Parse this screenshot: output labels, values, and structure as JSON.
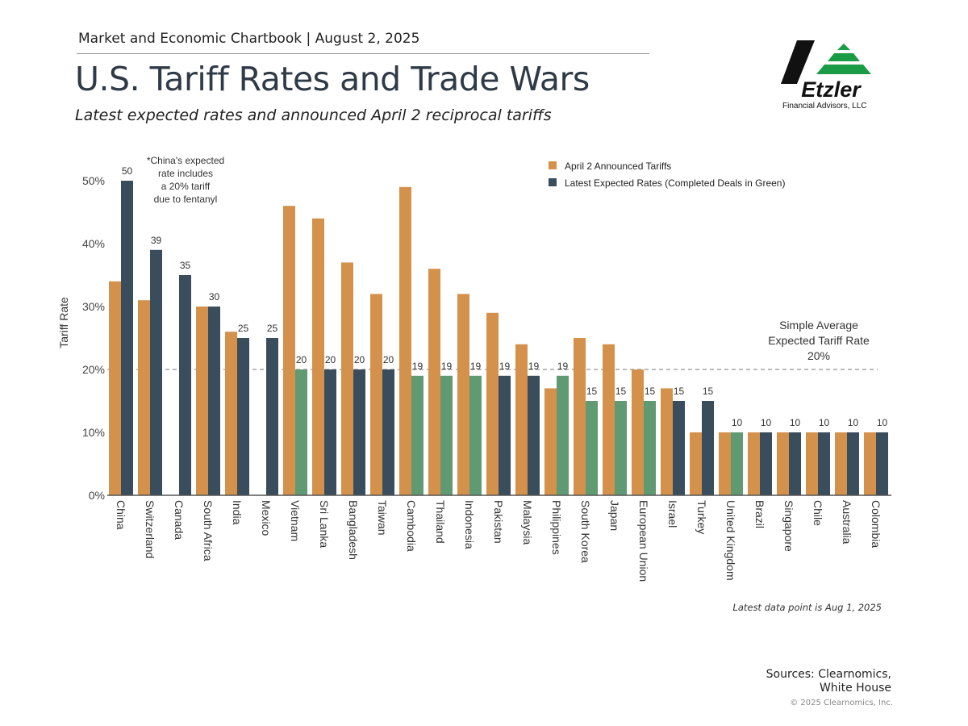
{
  "header": {
    "chartbook": "Market and Economic Chartbook | August 2, 2025",
    "title": "U.S. Tariff Rates and Trade Wars",
    "subtitle": "Latest expected rates and announced April 2 reciprocal tariffs"
  },
  "logo": {
    "name": "Etzler",
    "subtitle": "Financial Advisors, LLC"
  },
  "footer": {
    "sources_line1": "Sources: Clearnomics,",
    "sources_line2": "White House",
    "copyright": "© 2025 Clearnomics, Inc.",
    "latest_data": "Latest data point is Aug 1, 2025"
  },
  "colors": {
    "announced": "#d4914c",
    "expected": "#3a4d5c",
    "completed": "#5f9a72",
    "axis": "#555555"
  },
  "chart_data": {
    "type": "bar",
    "ylabel": "Tariff Rate",
    "ylim": [
      0,
      50
    ],
    "yticks": [
      0,
      10,
      20,
      30,
      40,
      50
    ],
    "ytick_labels": [
      "0%",
      "10%",
      "20%",
      "30%",
      "40%",
      "50%"
    ],
    "legend": {
      "placement": "top-right",
      "announced": "April 2 Announced Tariffs",
      "expected": "Latest Expected Rates (Completed Deals in Green)"
    },
    "reference_line": {
      "value": 20,
      "label_lines": [
        "Simple Average",
        "Expected Tariff Rate",
        "20%"
      ]
    },
    "annotation": [
      "*China's expected",
      "rate includes",
      "a 20% tariff",
      "due to fentanyl"
    ],
    "categories": [
      "China",
      "Switzerland",
      "Canada",
      "South Africa",
      "India",
      "Mexico",
      "Vietnam",
      "Sri Lanka",
      "Bangladesh",
      "Taiwan",
      "Cambodia",
      "Thailand",
      "Indonesia",
      "Pakistan",
      "Malaysia",
      "Philippines",
      "South Korea",
      "Japan",
      "European Union",
      "Israel",
      "Turkey",
      "United Kingdom",
      "Brazil",
      "Singapore",
      "Chile",
      "Australia",
      "Colombia"
    ],
    "series": [
      {
        "name": "April 2 Announced Tariffs",
        "values": [
          34,
          31,
          null,
          30,
          26,
          null,
          46,
          44,
          37,
          32,
          49,
          36,
          32,
          29,
          24,
          17,
          25,
          24,
          20,
          17,
          10,
          10,
          10,
          10,
          10,
          10,
          10
        ]
      },
      {
        "name": "Latest Expected Rates",
        "values": [
          50,
          39,
          35,
          30,
          25,
          25,
          20,
          20,
          20,
          20,
          19,
          19,
          19,
          19,
          19,
          19,
          15,
          15,
          15,
          15,
          15,
          10,
          10,
          10,
          10,
          10,
          10
        ],
        "completed_deal": [
          false,
          false,
          false,
          false,
          false,
          false,
          true,
          false,
          false,
          false,
          true,
          true,
          true,
          false,
          false,
          true,
          true,
          true,
          true,
          false,
          false,
          true,
          false,
          false,
          false,
          false,
          false
        ]
      }
    ]
  }
}
